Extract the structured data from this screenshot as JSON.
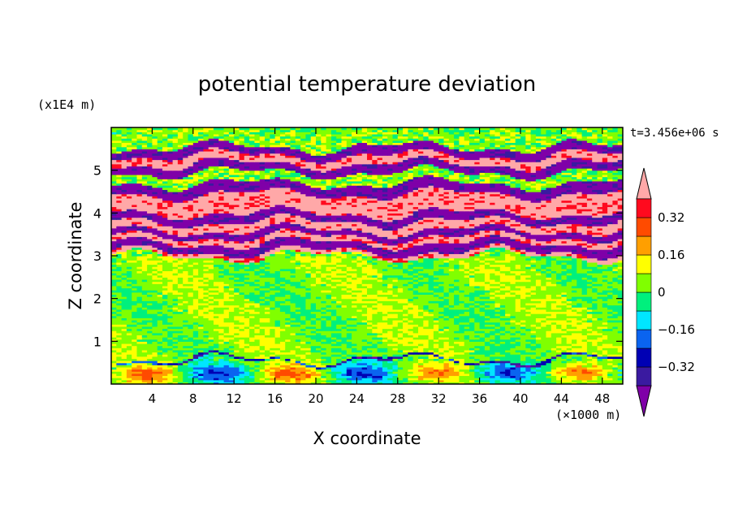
{
  "chart_data": {
    "type": "heatmap",
    "title": "potential temperature deviation",
    "xlabel": "X coordinate",
    "ylabel": "Z coordinate",
    "x_unit": "(×1000 m)",
    "y_unit": "(x1E4 m)",
    "time_label": "t=3.456e+06 s",
    "xlim": [
      0,
      50
    ],
    "ylim": [
      0,
      6
    ],
    "x_ticks": [
      4,
      8,
      12,
      16,
      20,
      24,
      28,
      32,
      36,
      40,
      44,
      48
    ],
    "y_ticks": [
      1,
      2,
      3,
      4,
      5
    ],
    "colorbar": {
      "levels": [
        -0.4,
        -0.32,
        -0.24,
        -0.16,
        -0.08,
        0,
        0.08,
        0.16,
        0.24,
        0.32,
        0.4
      ],
      "tick_values": [
        0.32,
        0.16,
        0,
        -0.16,
        -0.32
      ],
      "tick_labels": [
        "0.32",
        "0.16",
        "0",
        "−0.16",
        "−0.32"
      ],
      "colors": [
        "#7f00a8",
        "#3a1aa0",
        "#0000b4",
        "#0a64f0",
        "#00e6ff",
        "#00f07d",
        "#80ff00",
        "#ffff00",
        "#ff9f00",
        "#ff4b00",
        "#ff0a1e",
        "#ffa8a8"
      ],
      "extend": "both"
    },
    "bands": [
      {
        "z": [
          0.0,
          0.55
        ],
        "value": 0.0
      },
      {
        "z": [
          0.55,
          0.6
        ],
        "value": -0.3
      },
      {
        "z": [
          0.6,
          3.0
        ],
        "value": 0.04
      },
      {
        "z": [
          3.0,
          3.1
        ],
        "value": 0.45
      },
      {
        "z": [
          3.1,
          3.3
        ],
        "value": -0.45
      },
      {
        "z": [
          3.3,
          3.45
        ],
        "value": 0.45
      },
      {
        "z": [
          3.45,
          3.6
        ],
        "value": -0.45
      },
      {
        "z": [
          3.6,
          3.8
        ],
        "value": 0.45
      },
      {
        "z": [
          3.8,
          4.0
        ],
        "value": -0.45
      },
      {
        "z": [
          4.0,
          4.45
        ],
        "value": 0.45
      },
      {
        "z": [
          4.45,
          4.7
        ],
        "value": -0.45
      },
      {
        "z": [
          4.7,
          4.95
        ],
        "value": 0.04
      },
      {
        "z": [
          4.95,
          5.15
        ],
        "value": -0.45
      },
      {
        "z": [
          5.15,
          5.35
        ],
        "value": 0.45
      },
      {
        "z": [
          5.35,
          5.55
        ],
        "value": -0.45
      },
      {
        "z": [
          5.55,
          6.0
        ],
        "value": 0.04
      }
    ]
  }
}
